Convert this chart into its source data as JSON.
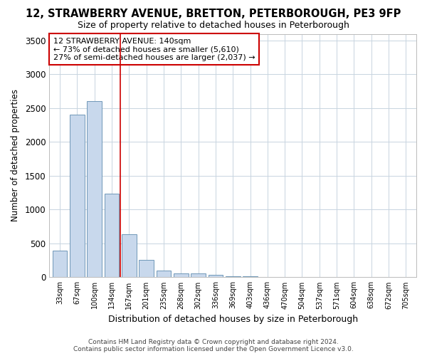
{
  "title": "12, STRAWBERRY AVENUE, BRETTON, PETERBOROUGH, PE3 9FP",
  "subtitle": "Size of property relative to detached houses in Peterborough",
  "xlabel": "Distribution of detached houses by size in Peterborough",
  "ylabel": "Number of detached properties",
  "footer_line1": "Contains HM Land Registry data © Crown copyright and database right 2024.",
  "footer_line2": "Contains public sector information licensed under the Open Government Licence v3.0.",
  "annotation_line1": "12 STRAWBERRY AVENUE: 140sqm",
  "annotation_line2": "← 73% of detached houses are smaller (5,610)",
  "annotation_line3": "27% of semi-detached houses are larger (2,037) →",
  "bar_color": "#c8d8ec",
  "bar_edge_color": "#7098b8",
  "grid_color": "#c8d4e0",
  "ref_line_color": "#cc0000",
  "categories": [
    "33sqm",
    "67sqm",
    "100sqm",
    "134sqm",
    "167sqm",
    "201sqm",
    "235sqm",
    "268sqm",
    "302sqm",
    "336sqm",
    "369sqm",
    "403sqm",
    "436sqm",
    "470sqm",
    "504sqm",
    "537sqm",
    "571sqm",
    "604sqm",
    "638sqm",
    "672sqm",
    "705sqm"
  ],
  "values": [
    390,
    2400,
    2600,
    1240,
    640,
    255,
    95,
    60,
    55,
    40,
    20,
    15,
    0,
    0,
    0,
    0,
    0,
    0,
    0,
    0,
    0
  ],
  "ylim": [
    0,
    3600
  ],
  "yticks": [
    0,
    500,
    1000,
    1500,
    2000,
    2500,
    3000,
    3500
  ],
  "background_color": "#ffffff",
  "plot_background_color": "#ffffff",
  "ref_line_bar_index": 3.5
}
